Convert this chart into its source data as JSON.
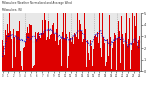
{
  "title": "Milwaukee Weather Normalized and Average Wind Direction (Last 24 Hours)",
  "subtitle": "Milwaukee, WI",
  "n_points": 288,
  "y_min": 0,
  "y_max": 5,
  "y_ticks": [
    0,
    1,
    2,
    3,
    4,
    5
  ],
  "bar_color": "#dd0000",
  "line_color": "#0000cc",
  "bg_color": "#ffffff",
  "plot_bg": "#e8e8e8",
  "grid_color": "#999999",
  "title_fontsize": 2.5,
  "seed": 7
}
